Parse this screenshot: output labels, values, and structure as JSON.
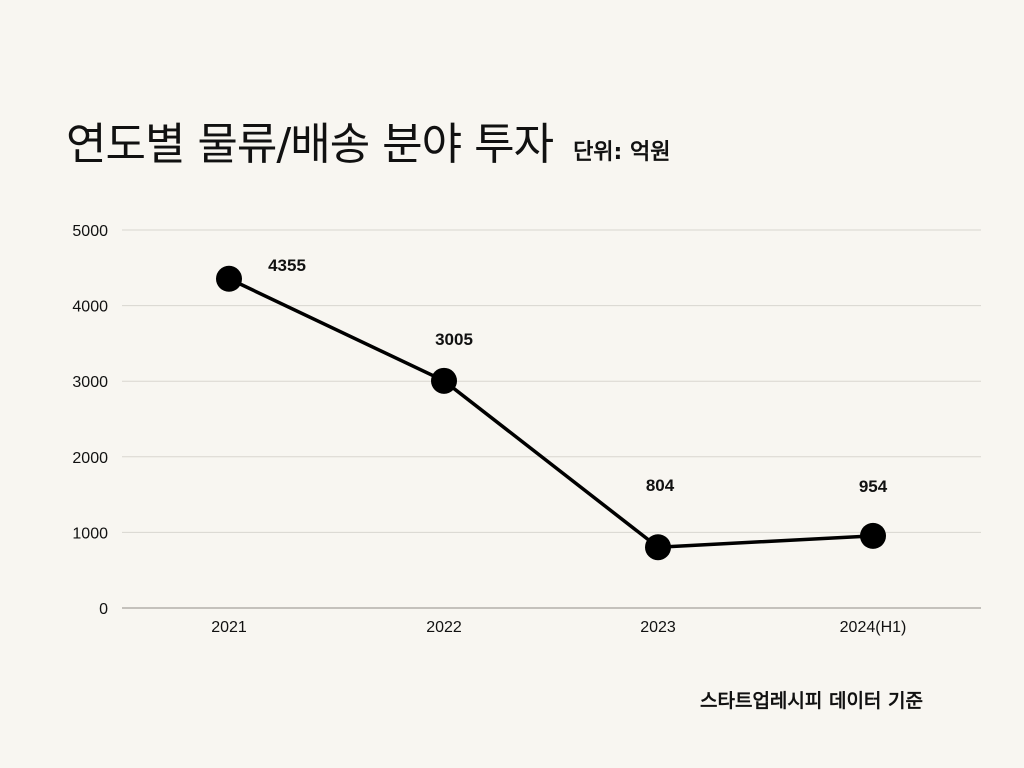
{
  "title": "연도별 물류/배송 분야 투자",
  "unit_label": "단위: 억원",
  "source": "스타트업레시피 데이터 기준",
  "chart_data": {
    "type": "line",
    "title": "연도별 물류/배송 분야 투자",
    "categories": [
      "2021",
      "2022",
      "2023",
      "2024(H1)"
    ],
    "series": [
      {
        "values": [
          4355,
          3005,
          804,
          954
        ]
      }
    ],
    "ylim": [
      0,
      5000
    ],
    "yticks": [
      0,
      1000,
      2000,
      3000,
      4000,
      5000
    ],
    "grid": true,
    "legend": "none",
    "line_color": "#000000",
    "grid_color": "#d9d6d0"
  }
}
